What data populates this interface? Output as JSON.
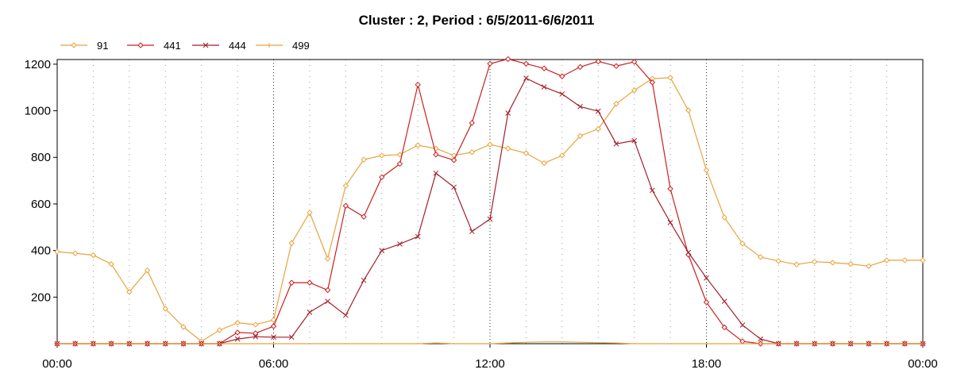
{
  "chart_data": {
    "type": "line",
    "title": "Cluster : 2, Period : 6/5/2011-6/6/2011",
    "xlabel": "",
    "ylabel": "",
    "ylim": [
      0,
      1220
    ],
    "yticks": [
      "200",
      "400",
      "600",
      "800",
      "1000",
      "1200"
    ],
    "xticks": [
      "00:00",
      "06:00",
      "12:00",
      "18:00",
      "00:00"
    ],
    "x": [
      "00:00",
      "00:30",
      "01:00",
      "01:30",
      "02:00",
      "02:30",
      "03:00",
      "03:30",
      "04:00",
      "04:30",
      "05:00",
      "05:30",
      "06:00",
      "06:30",
      "07:00",
      "07:30",
      "08:00",
      "08:30",
      "09:00",
      "09:30",
      "10:00",
      "10:30",
      "11:00",
      "11:30",
      "12:00",
      "12:30",
      "13:00",
      "13:30",
      "14:00",
      "14:30",
      "15:00",
      "15:30",
      "16:00",
      "16:30",
      "17:00",
      "17:30",
      "18:00",
      "18:30",
      "19:00",
      "19:30",
      "20:00",
      "20:30",
      "21:00",
      "21:30",
      "22:00",
      "22:30",
      "23:00",
      "23:30",
      "00:00"
    ],
    "grid": true,
    "legend_position": "top-left",
    "series": [
      {
        "name": "91",
        "color": "#E8A33C",
        "marker": "diamond",
        "values": [
          395,
          388,
          380,
          342,
          222,
          315,
          150,
          72,
          10,
          58,
          90,
          82,
          102,
          432,
          563,
          365,
          678,
          790,
          808,
          812,
          852,
          838,
          808,
          822,
          855,
          838,
          818,
          775,
          808,
          892,
          922,
          1030,
          1088,
          1138,
          1142,
          1002,
          745,
          542,
          430,
          372,
          355,
          340,
          352,
          348,
          342,
          333,
          358,
          358,
          358
        ]
      },
      {
        "name": "441",
        "color": "#CC1F1F",
        "marker": "diamond",
        "values": [
          0,
          0,
          0,
          0,
          0,
          0,
          0,
          0,
          0,
          0,
          48,
          45,
          75,
          262,
          262,
          230,
          592,
          545,
          715,
          772,
          1112,
          812,
          788,
          948,
          1202,
          1222,
          1202,
          1182,
          1148,
          1188,
          1212,
          1192,
          1210,
          1122,
          665,
          382,
          178,
          70,
          10,
          0,
          0,
          0,
          0,
          0,
          0,
          0,
          0,
          0,
          0
        ]
      },
      {
        "name": "444",
        "color": "#A31F2A",
        "marker": "x",
        "values": [
          0,
          0,
          0,
          0,
          0,
          0,
          0,
          0,
          0,
          0,
          20,
          30,
          28,
          28,
          135,
          182,
          122,
          272,
          400,
          428,
          460,
          732,
          672,
          482,
          535,
          990,
          1140,
          1102,
          1072,
          1018,
          998,
          858,
          872,
          658,
          520,
          392,
          282,
          182,
          80,
          20,
          0,
          0,
          0,
          0,
          0,
          0,
          0,
          0,
          0
        ]
      },
      {
        "name": "499",
        "color": "#E8A33C",
        "marker": "plus",
        "values": [
          0,
          0,
          0,
          0,
          0,
          0,
          0,
          0,
          0,
          0,
          0,
          0,
          0,
          0,
          0,
          0,
          0,
          0,
          0,
          0,
          0,
          3,
          0,
          0,
          0,
          3,
          6,
          8,
          8,
          6,
          4,
          3,
          0,
          0,
          0,
          0,
          0,
          0,
          0,
          0,
          0,
          0,
          0,
          0,
          0,
          0,
          0,
          0,
          0
        ]
      }
    ]
  }
}
